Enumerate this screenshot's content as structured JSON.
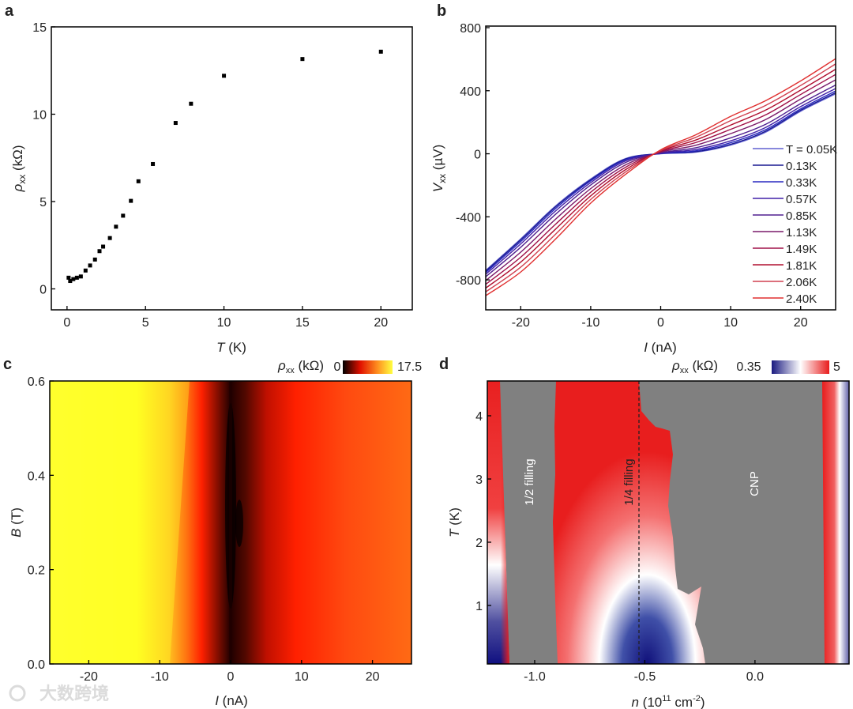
{
  "panel_letters": {
    "a": "a",
    "b": "b",
    "c": "c",
    "d": "d"
  },
  "watermark": "大数跨境",
  "chart_data": [
    {
      "panel": "a",
      "type": "scatter",
      "xlabel": {
        "sym": "T",
        "unit": " (K)"
      },
      "ylabel": {
        "sym": "ρ",
        "sub": "xx",
        "unit": " (kΩ)"
      },
      "xlim": [
        -1,
        22
      ],
      "ylim": [
        -1.2,
        15
      ],
      "xticks": [
        0,
        5,
        10,
        15,
        20
      ],
      "xtick_labels": [
        "0",
        "5",
        "10",
        "15",
        "20"
      ],
      "yticks": [
        0,
        5,
        10,
        15
      ],
      "ytick_labels": [
        "0",
        "5",
        "10",
        "15"
      ],
      "x": [
        0.1,
        0.2,
        0.4,
        0.63,
        0.88,
        1.18,
        1.47,
        1.78,
        2.07,
        2.3,
        2.73,
        3.12,
        3.57,
        4.07,
        4.55,
        5.47,
        6.92,
        7.9,
        10.0,
        15.0,
        20.0
      ],
      "y": [
        0.64,
        0.45,
        0.56,
        0.64,
        0.71,
        1.05,
        1.34,
        1.68,
        2.16,
        2.42,
        2.91,
        3.56,
        4.19,
        5.04,
        6.16,
        7.15,
        9.5,
        10.6,
        12.2,
        13.16,
        13.58
      ],
      "marker_color": "#000000"
    },
    {
      "panel": "b",
      "type": "line",
      "xlabel": {
        "sym": "I",
        "unit": " (nA)"
      },
      "ylabel": {
        "sym": "V",
        "sub": "xx",
        "unit": " (µV)"
      },
      "xlim": [
        -25,
        25
      ],
      "ylim": [
        -990,
        810
      ],
      "xticks": [
        -20,
        -10,
        0,
        10,
        20
      ],
      "xtick_labels": [
        "-20",
        "-10",
        "0",
        "10",
        "20"
      ],
      "yticks": [
        -800,
        -400,
        0,
        400,
        800
      ],
      "ytick_labels": [
        "-800",
        "-400",
        "0",
        "400",
        "800"
      ],
      "legend_position": "bottom-right",
      "x": [
        -25,
        -20,
        -15,
        -10,
        -5,
        0,
        5,
        10,
        15,
        20,
        25
      ],
      "series": [
        {
          "name": "T = 0.05K",
          "color": "#6060d0",
          "values": [
            -740,
            -540,
            -330,
            -160,
            -30,
            0,
            10,
            55,
            137,
            270,
            380
          ]
        },
        {
          "name": "0.13K",
          "color": "#1a1a90",
          "values": [
            -745,
            -546,
            -336,
            -165,
            -33,
            1,
            13,
            60,
            143,
            276,
            387
          ]
        },
        {
          "name": "0.33K",
          "color": "#2828c0",
          "values": [
            -753,
            -557,
            -347,
            -172,
            -38,
            2,
            19,
            70,
            153,
            285,
            398
          ]
        },
        {
          "name": "0.57K",
          "color": "#4020a8",
          "values": [
            -764,
            -572,
            -362,
            -183,
            -45,
            4,
            27,
            82,
            167,
            299,
            414
          ]
        },
        {
          "name": "0.85K",
          "color": "#502090",
          "values": [
            -780,
            -593,
            -383,
            -198,
            -55,
            6,
            38,
            101,
            187,
            318,
            436
          ]
        },
        {
          "name": "1.13K",
          "color": "#7a1a6a",
          "values": [
            -804,
            -624,
            -414,
            -221,
            -70,
            10,
            54,
            128,
            217,
            347,
            469
          ]
        },
        {
          "name": "1.49K",
          "color": "#a01048",
          "values": [
            -828,
            -656,
            -446,
            -244,
            -85,
            14,
            71,
            155,
            247,
            376,
            503
          ]
        },
        {
          "name": "1.81K",
          "color": "#b01030",
          "values": [
            -852,
            -687,
            -477,
            -267,
            -100,
            18,
            87,
            182,
            277,
            404,
            536
          ]
        },
        {
          "name": "2.06K",
          "color": "#d04050",
          "values": [
            -876,
            -719,
            -509,
            -290,
            -115,
            21,
            104,
            210,
            307,
            433,
            570
          ]
        },
        {
          "name": "2.40K",
          "color": "#e03030",
          "values": [
            -900,
            -750,
            -540,
            -313,
            -130,
            25,
            120,
            237,
            337,
            462,
            603
          ]
        }
      ]
    },
    {
      "panel": "c",
      "type": "heatmap",
      "xlabel": {
        "sym": "I",
        "unit": " (nA)"
      },
      "ylabel": {
        "sym": "B",
        "unit": " (T)"
      },
      "xlim": [
        -25.5,
        25.5
      ],
      "ylim": [
        0,
        0.6
      ],
      "xticks": [
        -20,
        -10,
        0,
        10,
        20
      ],
      "xtick_labels": [
        "-20",
        "-10",
        "0",
        "10",
        "20"
      ],
      "yticks": [
        0,
        0.2,
        0.4,
        0.6
      ],
      "ytick_labels": [
        "0.0",
        "0.2",
        "0.4",
        "0.6"
      ],
      "colorbar": {
        "label_sym": "ρ",
        "label_sub": "xx",
        "label_unit": " (kΩ)",
        "min": "0",
        "max": "17.5",
        "colormap": "hot"
      }
    },
    {
      "panel": "d",
      "type": "heatmap",
      "xlabel": {
        "sym": "n",
        "unit_pre": " (10",
        "sup1": "11",
        "unit_mid": " cm",
        "sup2": "-2",
        "unit_post": ")"
      },
      "ylabel": {
        "sym": "T",
        "unit": " (K)"
      },
      "xlim": [
        -1.215,
        0.427
      ],
      "ylim": [
        0.075,
        4.55
      ],
      "xticks": [
        -1.0,
        -0.5,
        0.0
      ],
      "xtick_labels": [
        "-1.0",
        "-0.5",
        "0.0"
      ],
      "yticks": [
        1,
        2,
        3,
        4
      ],
      "ytick_labels": [
        "1",
        "2",
        "3",
        "4"
      ],
      "colorbar": {
        "label_sym": "ρ",
        "label_sub": "xx",
        "label_unit": " (kΩ)",
        "min": "0.35",
        "max": "5",
        "colormap": "blue-white-red"
      },
      "annotations": [
        "1/2 filling",
        "1/4 filling",
        "CNP"
      ],
      "dashed_line_n": -0.53
    }
  ]
}
